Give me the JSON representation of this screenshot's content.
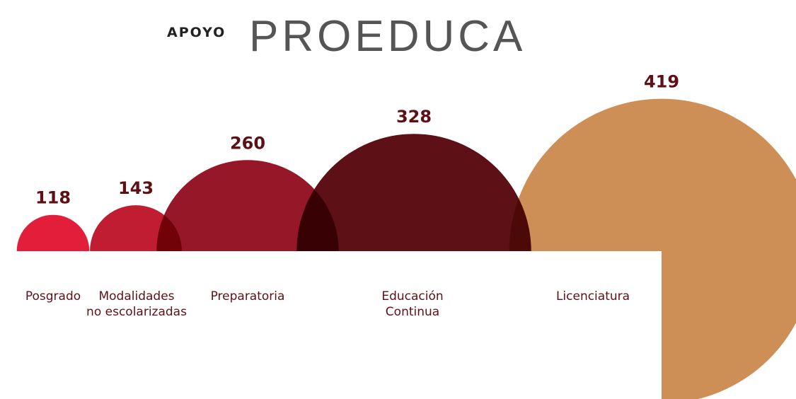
{
  "chart_data": {
    "type": "bubble",
    "title_lead": "APOYO",
    "title": "PROEDUCA",
    "categories": [
      "Posgrado",
      "Modalidades\nno escolarizadas",
      "Preparatoria",
      "Educación\nContinua",
      "Licenciatura"
    ],
    "values": [
      118,
      143,
      260,
      328,
      419
    ],
    "colors": [
      "#e31e3a",
      "#c01c32",
      "#961828",
      "#5e1017",
      "#cd8f56"
    ]
  }
}
